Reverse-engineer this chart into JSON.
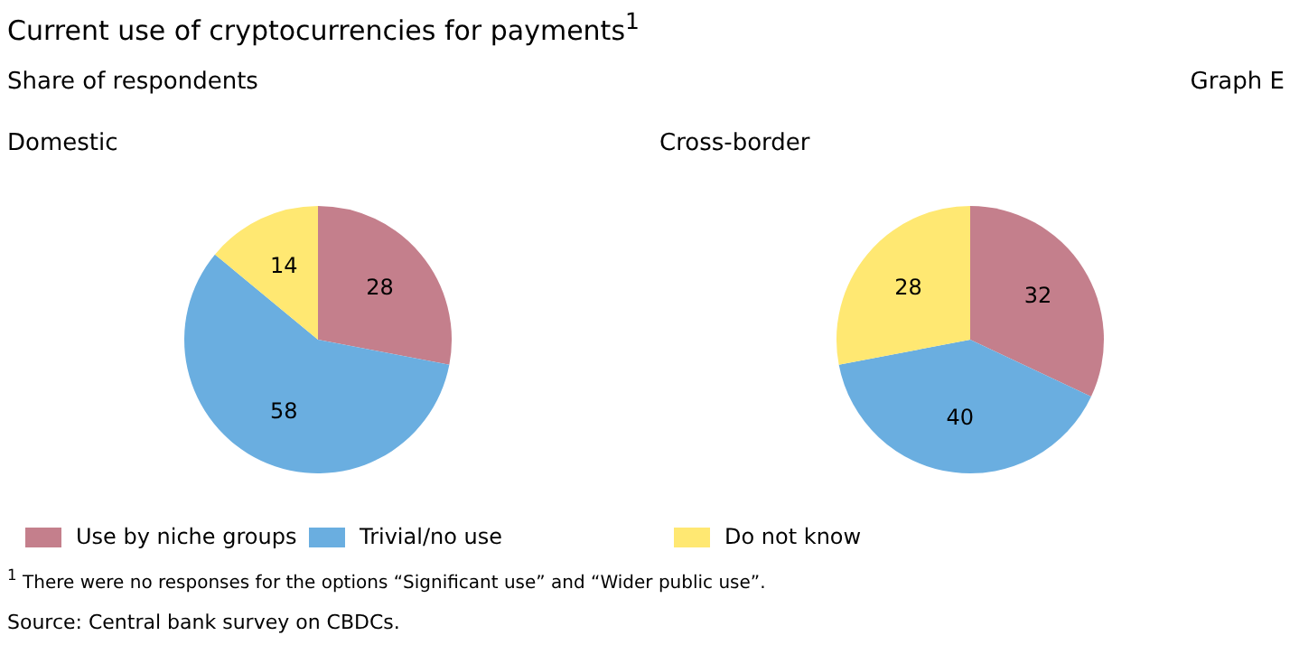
{
  "chart_data": [
    {
      "type": "pie",
      "title": "Domestic",
      "categories": [
        "Use by niche groups",
        "Trivial/no use",
        "Do not know"
      ],
      "values": [
        28,
        58,
        14
      ],
      "colors": [
        "#c47f8c",
        "#6aaee0",
        "#ffe872"
      ],
      "data_labels": true,
      "legend": "bottom",
      "annotations": [
        "Current use of cryptocurrencies for payments$^{1}$",
        "Share of respondents",
        "Graph E",
        "$^{1}$  There were no responses for the options “Significant use” and “Wider public use”.",
        "Source: Central bank survey on CBDCs."
      ]
    },
    {
      "type": "pie",
      "title": "Cross-border",
      "categories": [
        null,
        null,
        null
      ],
      "values": [
        32,
        40,
        28
      ],
      "colors": [
        "#c47f8c",
        "#6aaee0",
        "#ffe872"
      ],
      "data_labels": true
    }
  ]
}
